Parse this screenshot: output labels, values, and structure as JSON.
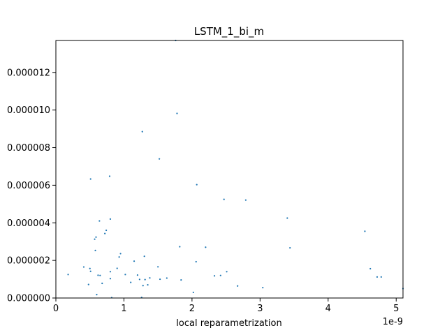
{
  "chart_data": {
    "type": "scatter",
    "title": "LSTM_1_bi_m",
    "xlabel": "local reparametrization",
    "ylabel": "",
    "x_offset_text": "1e-9",
    "xlim": [
      0,
      5.1e-09
    ],
    "ylim": [
      0,
      1.37e-05
    ],
    "x_ticks": [
      0,
      1e-09,
      2e-09,
      3e-09,
      4e-09,
      5e-09
    ],
    "x_tick_labels": [
      "0",
      "1",
      "2",
      "3",
      "4",
      "5"
    ],
    "y_ticks": [
      0,
      2e-06,
      4e-06,
      6e-06,
      8e-06,
      1e-05,
      1.2e-05
    ],
    "y_tick_labels": [
      "0.000000",
      "0.000002",
      "0.000004",
      "0.000006",
      "0.000008",
      "0.000010",
      "0.000012"
    ],
    "grid": false,
    "marker_color": "#1f77b4",
    "series": [
      {
        "x": [
          1.8e-10,
          4.1e-10,
          4.8e-10,
          5e-10,
          5.1e-10,
          5.1e-10,
          5.7e-10,
          5.8e-10,
          5.9e-10,
          6e-10,
          6.2e-10,
          6.4e-10,
          6.5e-10,
          6.8e-10,
          7.2e-10,
          7.4e-10,
          7.9e-10,
          8e-10,
          8e-10,
          8e-10,
          9e-10,
          9.3e-10,
          9.5e-10,
          1.02e-09,
          1.1e-09,
          1.15e-09,
          1.2e-09,
          1.23e-09,
          1.27e-09,
          1.28e-09,
          1.3e-09,
          1.31e-09,
          1.35e-09,
          1.38e-09,
          1.5e-09,
          1.52e-09,
          1.53e-09,
          1.63e-09,
          1.76e-09,
          1.78e-09,
          1.82e-09,
          1.84e-09,
          2.02e-09,
          2.06e-09,
          2.07e-09,
          2.2e-09,
          2.33e-09,
          2.42e-09,
          2.47e-09,
          2.51e-09,
          2.67e-09,
          2.79e-09,
          3.04e-09,
          3.4e-09,
          3.44e-09,
          4.54e-09,
          4.62e-09,
          4.72e-09,
          4.78e-09,
          5.1e-09,
          8.2e-10,
          1.26e-09
        ],
        "y": [
          1.25e-06,
          1.65e-06,
          7.2e-07,
          1.57e-06,
          6.33e-06,
          1.42e-06,
          3.13e-06,
          2.53e-06,
          3.24e-06,
          1.8e-07,
          1.21e-06,
          4.1e-06,
          1.2e-06,
          7.8e-07,
          3.43e-06,
          3.6e-06,
          6.48e-06,
          4.2e-06,
          1.4e-06,
          1.03e-06,
          1.58e-06,
          2.18e-06,
          2.36e-06,
          1.25e-06,
          8.3e-07,
          1.96e-06,
          1.22e-06,
          9.9e-07,
          8.85e-06,
          6.6e-07,
          2.22e-06,
          9.8e-07,
          7e-07,
          1.07e-06,
          1.66e-06,
          7.4e-06,
          1e-06,
          1.06e-06,
          1.37e-05,
          9.82e-06,
          2.73e-06,
          9.6e-07,
          3e-07,
          1.93e-06,
          6.03e-06,
          2.7e-06,
          1.18e-06,
          1.2e-06,
          5.25e-06,
          1.4e-06,
          6.4e-07,
          5.21e-06,
          5.5e-07,
          4.25e-06,
          2.67e-06,
          3.55e-06,
          1.56e-06,
          1.12e-06,
          1.12e-06,
          5e-07,
          2e-08,
          3e-08
        ]
      }
    ]
  }
}
